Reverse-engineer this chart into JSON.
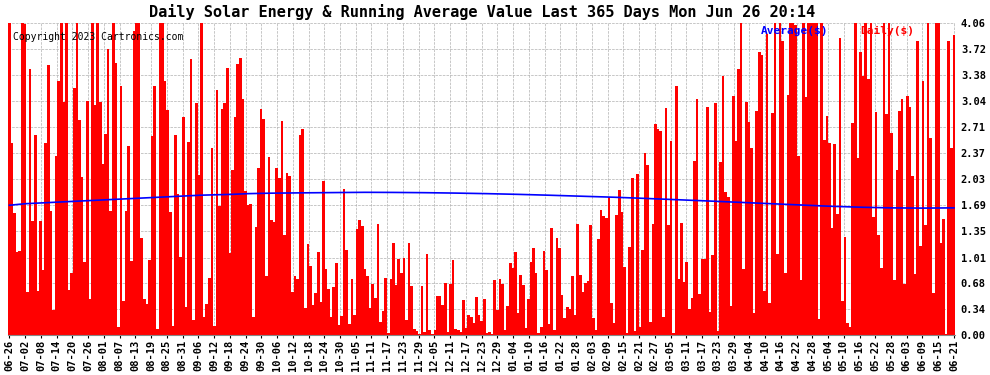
{
  "title": "Daily Solar Energy & Running Average Value Last 365 Days Mon Jun 26 20:14",
  "copyright": "Copyright 2023 Cartronics.com",
  "legend_average": "Average($)",
  "legend_daily": "Daily($)",
  "yticks": [
    0.0,
    0.34,
    0.68,
    1.01,
    1.35,
    1.69,
    2.03,
    2.37,
    2.71,
    3.04,
    3.38,
    3.72,
    4.06
  ],
  "ylim": [
    0,
    4.06
  ],
  "bar_color": "#ff0000",
  "avg_line_color": "#0000ff",
  "bg_color": "#ffffff",
  "grid_color": "#b0b0b0",
  "title_fontsize": 11,
  "copyright_fontsize": 7,
  "tick_fontsize": 7.5,
  "x_labels": [
    "06-26",
    "07-02",
    "07-08",
    "07-14",
    "07-20",
    "07-26",
    "08-01",
    "08-07",
    "08-13",
    "08-19",
    "08-25",
    "08-31",
    "09-06",
    "09-12",
    "09-18",
    "09-24",
    "09-30",
    "10-06",
    "10-12",
    "10-18",
    "10-24",
    "10-30",
    "11-05",
    "11-11",
    "11-17",
    "11-23",
    "11-29",
    "12-05",
    "12-11",
    "12-17",
    "12-23",
    "12-29",
    "01-04",
    "01-10",
    "01-16",
    "01-22",
    "01-28",
    "02-03",
    "02-09",
    "02-15",
    "02-21",
    "02-27",
    "03-05",
    "03-11",
    "03-17",
    "03-23",
    "03-29",
    "04-04",
    "04-10",
    "04-16",
    "04-22",
    "04-28",
    "05-04",
    "05-10",
    "05-16",
    "05-22",
    "05-28",
    "06-03",
    "06-09",
    "06-15",
    "06-21"
  ],
  "avg_line": [
    1.69,
    1.71,
    1.72,
    1.73,
    1.74,
    1.75,
    1.76,
    1.77,
    1.78,
    1.79,
    1.8,
    1.81,
    1.82,
    1.825,
    1.83,
    1.84,
    1.845,
    1.848,
    1.85,
    1.852,
    1.855,
    1.857,
    1.858,
    1.858,
    1.857,
    1.856,
    1.854,
    1.852,
    1.849,
    1.846,
    1.842,
    1.838,
    1.833,
    1.828,
    1.822,
    1.816,
    1.81,
    1.804,
    1.797,
    1.79,
    1.782,
    1.774,
    1.766,
    1.758,
    1.749,
    1.74,
    1.731,
    1.722,
    1.713,
    1.704,
    1.695,
    1.686,
    1.678,
    1.671,
    1.665,
    1.66,
    1.656,
    1.654,
    1.653,
    1.654,
    1.656
  ]
}
